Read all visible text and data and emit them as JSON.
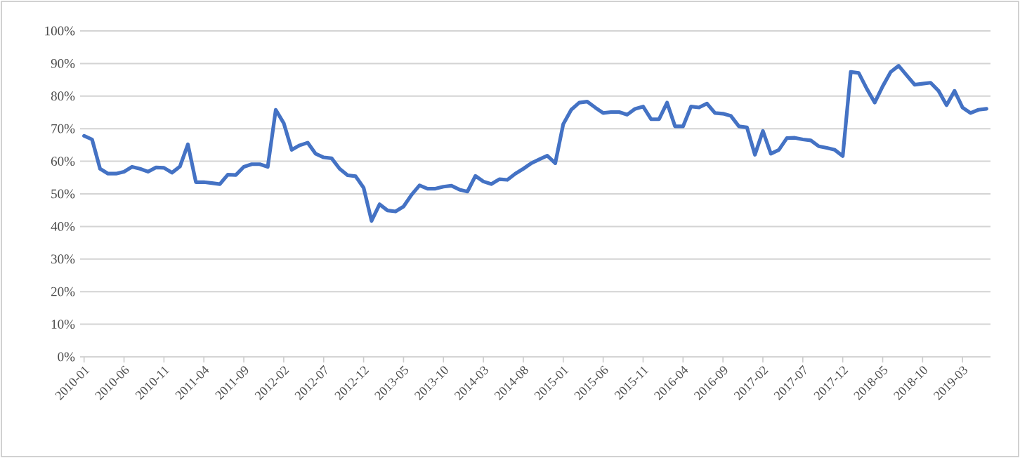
{
  "chart_data": {
    "type": "line",
    "categories": [
      "2010-01",
      null,
      null,
      null,
      null,
      "2010-06",
      null,
      null,
      null,
      null,
      "2010-11",
      null,
      null,
      null,
      null,
      "2011-04",
      null,
      null,
      null,
      null,
      "2011-09",
      null,
      null,
      null,
      null,
      "2012-02",
      null,
      null,
      null,
      null,
      "2012-07",
      null,
      null,
      null,
      null,
      "2012-12",
      null,
      null,
      null,
      null,
      "2013-05",
      null,
      null,
      null,
      null,
      "2013-10",
      null,
      null,
      null,
      null,
      "2014-03",
      null,
      null,
      null,
      null,
      "2014-08",
      null,
      null,
      null,
      null,
      "2015-01",
      null,
      null,
      null,
      null,
      "2015-06",
      null,
      null,
      null,
      null,
      "2015-11",
      null,
      null,
      null,
      null,
      "2016-04",
      null,
      null,
      null,
      null,
      "2016-09",
      null,
      null,
      null,
      null,
      "2017-02",
      null,
      null,
      null,
      null,
      "2017-07",
      null,
      null,
      null,
      null,
      "2017-12",
      null,
      null,
      null,
      null,
      "2018-05",
      null,
      null,
      null,
      null,
      "2018-10",
      null,
      null,
      null,
      null,
      "2019-03",
      null,
      null,
      null
    ],
    "series": [
      {
        "color": "#4472c4",
        "values": [
          67.8,
          66.7,
          57.7,
          56.2,
          56.2,
          56.8,
          58.3,
          57.7,
          56.8,
          58.1,
          58,
          56.5,
          58.4,
          65.2,
          53.6,
          53.6,
          53.3,
          53,
          55.9,
          55.8,
          58.3,
          59.1,
          59.1,
          58.3,
          75.8,
          71.7,
          63.5,
          64.9,
          65.7,
          62.3,
          61.2,
          60.9,
          57.7,
          55.7,
          55.4,
          51.9,
          41.7,
          46.8,
          44.9,
          44.6,
          46.1,
          49.7,
          52.6,
          51.6,
          51.6,
          52.2,
          52.5,
          51.3,
          50.7,
          55.5,
          53.8,
          53,
          54.5,
          54.3,
          56.2,
          57.7,
          59.4,
          60.6,
          61.7,
          59.4,
          71.4,
          75.8,
          78,
          78.3,
          76.5,
          74.8,
          75.1,
          75.1,
          74.3,
          76.1,
          76.8,
          72.9,
          72.9,
          78,
          70.7,
          70.7,
          76.8,
          76.5,
          77.7,
          74.8,
          74.6,
          73.9,
          70.7,
          70.4,
          62,
          69.3,
          62.3,
          63.5,
          67.1,
          67.2,
          66.7,
          66.4,
          64.6,
          64.1,
          63.5,
          61.6,
          87.4,
          87.1,
          82.3,
          78,
          83,
          87.4,
          89.3,
          86.4,
          83.5,
          83.8,
          84.1,
          81.6,
          77.2,
          81.6,
          76.5,
          74.8,
          75.8,
          76.1
        ]
      }
    ],
    "ylim": [
      0,
      100
    ],
    "yticks": [
      {
        "value": 0,
        "label": "0%"
      },
      {
        "value": 10,
        "label": "10%"
      },
      {
        "value": 20,
        "label": "20%"
      },
      {
        "value": 30,
        "label": "30%"
      },
      {
        "value": 40,
        "label": "40%"
      },
      {
        "value": 50,
        "label": "50%"
      },
      {
        "value": 60,
        "label": "60%"
      },
      {
        "value": 70,
        "label": "70%"
      },
      {
        "value": 80,
        "label": "80%"
      },
      {
        "value": 90,
        "label": "90%"
      },
      {
        "value": 100,
        "label": "100%"
      }
    ],
    "grid": "y",
    "legend": false,
    "marker": "none",
    "line_style": "solid"
  }
}
